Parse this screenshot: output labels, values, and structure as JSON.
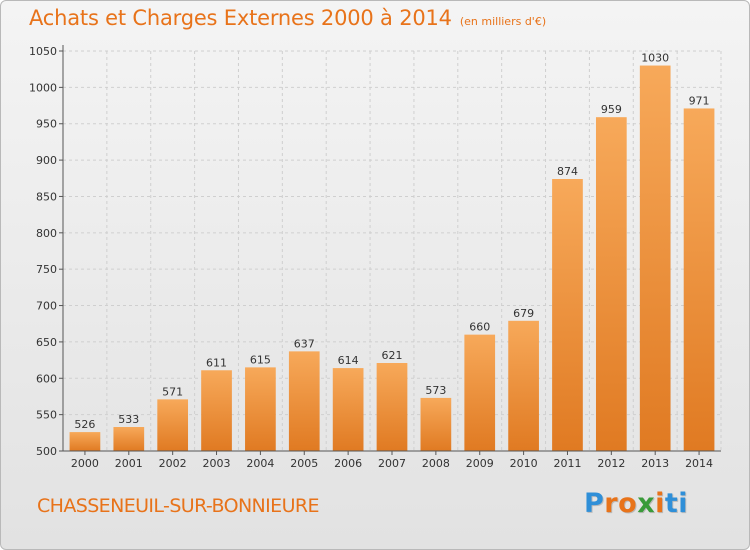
{
  "header": {
    "title": "Achats et Charges Externes 2000 à 2014",
    "subtitle": "(en milliers d'€)"
  },
  "footer": {
    "city": "CHASSENEUIL-SUR-BONNIEURE",
    "logo_text": "Proxiti",
    "logo_colors": [
      "#2f8fd8",
      "#e8731a",
      "#e8731a",
      "#3a9b3a",
      "#e8731a",
      "#2f8fd8",
      "#2f8fd8"
    ]
  },
  "colors": {
    "accent": "#e8731a",
    "bar_light": "#f7a95a",
    "bar_dark": "#e07a22",
    "grid": "#cfcfcf",
    "axis": "#555555"
  },
  "chart_data": {
    "type": "bar",
    "title": "Achats et Charges Externes 2000 à 2014",
    "subtitle": "(en milliers d'€)",
    "xlabel": "",
    "ylabel": "",
    "categories": [
      "2000",
      "2001",
      "2002",
      "2003",
      "2004",
      "2005",
      "2006",
      "2007",
      "2008",
      "2009",
      "2010",
      "2011",
      "2012",
      "2013",
      "2014"
    ],
    "values": [
      526,
      533,
      571,
      611,
      615,
      637,
      614,
      621,
      573,
      660,
      679,
      874,
      959,
      1030,
      971
    ],
    "ylim": [
      500,
      1050
    ],
    "yticks": [
      500,
      550,
      600,
      650,
      700,
      750,
      800,
      850,
      900,
      950,
      1000,
      1050
    ],
    "grid": true,
    "legend": "none"
  }
}
